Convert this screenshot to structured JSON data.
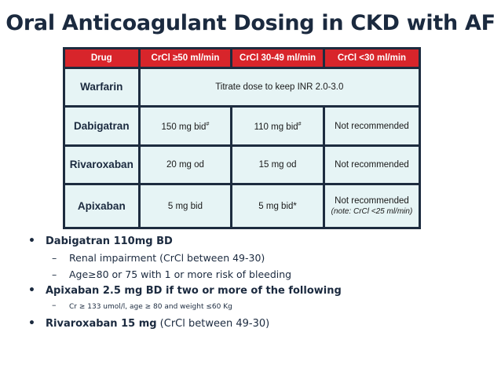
{
  "title": "Oral Anticoagulant Dosing in CKD with AF",
  "table": {
    "headers": [
      "Drug",
      "CrCl ≥50 ml/min",
      "CrCl 30-49 ml/min",
      "CrCl <30 ml/min"
    ],
    "rows": [
      {
        "drug": "Warfarin",
        "span": "Titrate dose to keep INR 2.0-3.0"
      },
      {
        "drug": "Dabigatran",
        "c1": "150 mg bid",
        "c1_sup": "#",
        "c2": "110 mg bid",
        "c2_sup": "#",
        "c3": "Not recommended"
      },
      {
        "drug": "Rivaroxaban",
        "c1": "20 mg od",
        "c2": "15 mg od",
        "c3": "Not recommended"
      },
      {
        "drug": "Apixaban",
        "c1": "5 mg bid",
        "c2": "5 mg bid*",
        "c3": "Not recommended",
        "c3_note": "(note: CrCl <25 ml/min)"
      }
    ]
  },
  "bullets": {
    "b1": "Dabigatran 110mg BD",
    "b1_sub1": "Renal impairment (CrCl between 49-30)",
    "b1_sub2": "Age≥80 or 75 with 1 or more risk of bleeding",
    "b2": "Apixaban 2.5 mg BD if two or more of the following",
    "b2_sub1": "Cr ≥ 133 umol/l, age ≥ 80 and weight ≤60 Kg",
    "b3_bold": "Rivaroxaban 15 mg",
    "b3_plain": " (CrCl between 49-30)",
    "bullet_char": "•",
    "dash_char": "–"
  }
}
